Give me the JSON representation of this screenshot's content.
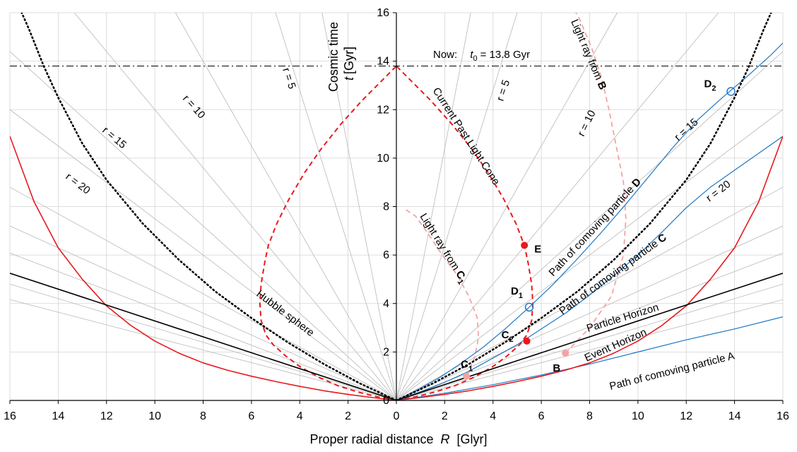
{
  "chart_data": {
    "type": "line",
    "xlabel": "Proper radial distance",
    "xlabel_symbol": "R",
    "xlabel_unit": "[Glyr]",
    "ylabel_line1": "Cosmic time",
    "ylabel_symbol": "t",
    "ylabel_unit": "[Gyr]",
    "xlim": [
      -16,
      16
    ],
    "ylim": [
      0,
      16
    ],
    "x_tick_labels": [
      "16",
      "14",
      "12",
      "10",
      "8",
      "6",
      "4",
      "2",
      "0",
      "2",
      "4",
      "6",
      "8",
      "10",
      "12",
      "14",
      "16"
    ],
    "y_tick_labels": [
      "0",
      "2",
      "4",
      "6",
      "8",
      "10",
      "12",
      "14",
      "16"
    ],
    "grid": true,
    "now": {
      "prefix": "Now:",
      "symbol": "t",
      "sub": "0",
      "suffix": "= 13.8 Gyr",
      "t": 13.8
    },
    "colors": {
      "light_cone": "#e8191d",
      "light_ray": "#f4a3a3",
      "comoving": "#1f77c4",
      "event_horizon": "#e8191d",
      "particle_horizon": "#000000",
      "hubble": "#000000",
      "grid": "#d3d3d3",
      "worldline": "#b8b8b8"
    },
    "labels": {
      "r5": "r = 5",
      "r10": "r = 10",
      "r15": "r = 15",
      "r20": "r = 20",
      "hubble": "Hubble sphere",
      "light_cone": "Current Past Light Cone",
      "ray_b": "Light ray from",
      "ray_b_bold": "B",
      "ray_c1": "Light ray from",
      "ray_c1_bold": "C",
      "ray_c1_sub": "1",
      "path_d": "Path of comoving particle",
      "path_d_bold": "D",
      "path_c": "Path of comoving particle",
      "path_c_bold": "C",
      "particle_horizon": "Particle Horizon",
      "event_horizon": "Event Horizon",
      "path_a": "Path of comoving particle A"
    },
    "points": [
      {
        "name": "E",
        "sub": "",
        "x": 5.3,
        "y": 6.4,
        "style": "red"
      },
      {
        "name": "C",
        "sub": "2",
        "x": 5.4,
        "y": 2.45,
        "style": "red"
      },
      {
        "name": "C",
        "sub": "1",
        "x": 2.9,
        "y": 1.0,
        "style": "pink"
      },
      {
        "name": "B",
        "sub": "",
        "x": 7.0,
        "y": 1.95,
        "style": "pink"
      },
      {
        "name": "D",
        "sub": "1",
        "x": 5.5,
        "y": 3.85,
        "style": "ring"
      },
      {
        "name": "D",
        "sub": "2",
        "x": 13.85,
        "y": 12.75,
        "style": "ring"
      }
    ],
    "series": [
      {
        "name": "Current Past Light Cone",
        "points": [
          [
            0,
            0
          ],
          [
            0.8,
            0.15
          ],
          [
            1.6,
            0.35
          ],
          [
            2.4,
            0.6
          ],
          [
            3.2,
            0.95
          ],
          [
            4.0,
            1.4
          ],
          [
            4.6,
            1.85
          ],
          [
            5.1,
            2.3
          ],
          [
            5.4,
            2.7
          ],
          [
            5.6,
            3.3
          ],
          [
            5.65,
            4.0
          ],
          [
            5.6,
            4.8
          ],
          [
            5.45,
            5.7
          ],
          [
            5.3,
            6.4
          ],
          [
            4.95,
            7.3
          ],
          [
            4.45,
            8.3
          ],
          [
            3.8,
            9.4
          ],
          [
            3.1,
            10.4
          ],
          [
            2.3,
            11.4
          ],
          [
            1.4,
            12.4
          ],
          [
            0.7,
            13.1
          ],
          [
            0,
            13.8
          ]
        ]
      },
      {
        "name": "Light ray from B",
        "points": [
          [
            7.0,
            1.95
          ],
          [
            8.0,
            3.0
          ],
          [
            8.9,
            4.3
          ],
          [
            9.4,
            6.0
          ],
          [
            9.5,
            7.5
          ],
          [
            9.4,
            9.0
          ],
          [
            9.1,
            10.5
          ],
          [
            8.8,
            12.0
          ],
          [
            8.5,
            13.3
          ],
          [
            8.1,
            14.5
          ],
          [
            7.6,
            15.7
          ],
          [
            7.1,
            16.6
          ]
        ]
      },
      {
        "name": "Light ray from C1",
        "points": [
          [
            2.9,
            1.0
          ],
          [
            3.25,
            1.8
          ],
          [
            3.4,
            2.6
          ],
          [
            3.35,
            3.4
          ],
          [
            3.0,
            4.3
          ],
          [
            2.5,
            5.2
          ],
          [
            1.9,
            6.0
          ],
          [
            1.3,
            6.9
          ],
          [
            0.8,
            7.6
          ],
          [
            0.35,
            7.9
          ]
        ]
      },
      {
        "name": "Path of comoving particle D",
        "points": [
          [
            0,
            0
          ],
          [
            0.9,
            0.45
          ],
          [
            1.8,
            0.95
          ],
          [
            2.7,
            1.55
          ],
          [
            3.6,
            2.2
          ],
          [
            4.5,
            2.95
          ],
          [
            5.5,
            3.85
          ],
          [
            6.5,
            4.8
          ],
          [
            7.5,
            5.85
          ],
          [
            8.5,
            6.95
          ],
          [
            9.5,
            8.1
          ],
          [
            10.5,
            9.3
          ],
          [
            11.5,
            10.5
          ],
          [
            12.5,
            11.6
          ],
          [
            13.5,
            12.5
          ],
          [
            14.5,
            13.35
          ],
          [
            15.5,
            14.25
          ],
          [
            16,
            14.75
          ]
        ]
      },
      {
        "name": "Path of comoving particle C",
        "points": [
          [
            0,
            0
          ],
          [
            1.0,
            0.35
          ],
          [
            2.0,
            0.75
          ],
          [
            3.0,
            1.2
          ],
          [
            4.0,
            1.75
          ],
          [
            5.0,
            2.3
          ],
          [
            6.0,
            2.95
          ],
          [
            7.0,
            3.6
          ],
          [
            8.0,
            4.35
          ],
          [
            9.0,
            5.15
          ],
          [
            10.0,
            6.0
          ],
          [
            11.0,
            6.95
          ],
          [
            12.0,
            7.95
          ],
          [
            13.0,
            8.8
          ],
          [
            14.0,
            9.5
          ],
          [
            15.0,
            10.2
          ],
          [
            16,
            10.9
          ]
        ]
      },
      {
        "name": "Path of comoving particle A",
        "points": [
          [
            0,
            0
          ],
          [
            2.0,
            0.3
          ],
          [
            4.0,
            0.65
          ],
          [
            6.0,
            1.05
          ],
          [
            8.0,
            1.5
          ],
          [
            10.0,
            2.0
          ],
          [
            12.0,
            2.5
          ],
          [
            14.0,
            2.95
          ],
          [
            16,
            3.45
          ]
        ]
      },
      {
        "name": "Event Horizon",
        "points": [
          [
            0,
            0
          ],
          [
            1.0,
            0.12
          ],
          [
            2.0,
            0.25
          ],
          [
            3.0,
            0.4
          ],
          [
            4.0,
            0.58
          ],
          [
            5.0,
            0.78
          ],
          [
            6.0,
            1.0
          ],
          [
            7.0,
            1.25
          ],
          [
            8.0,
            1.55
          ],
          [
            9.0,
            1.95
          ],
          [
            10.0,
            2.45
          ],
          [
            11.0,
            3.1
          ],
          [
            12.0,
            3.9
          ],
          [
            13.0,
            5.0
          ],
          [
            14.0,
            6.3
          ],
          [
            15.0,
            8.2
          ],
          [
            16,
            10.9
          ]
        ]
      },
      {
        "name": "Particle Horizon",
        "points": [
          [
            0,
            0
          ],
          [
            16,
            5.25
          ]
        ]
      },
      {
        "name": "Hubble sphere",
        "points": [
          [
            0,
            0
          ],
          [
            1.5,
            0.7
          ],
          [
            3.0,
            1.5
          ],
          [
            4.5,
            2.4
          ],
          [
            6.0,
            3.4
          ],
          [
            7.5,
            4.5
          ],
          [
            9.0,
            5.8
          ],
          [
            10.5,
            7.3
          ],
          [
            12.0,
            9.1
          ],
          [
            13.0,
            10.6
          ],
          [
            14.0,
            12.5
          ],
          [
            14.6,
            13.8
          ],
          [
            15.2,
            15.3
          ],
          [
            15.6,
            16.2
          ]
        ]
      }
    ],
    "worldline_slopes": [
      5.2,
      3.2,
      1.75,
      1.2,
      0.9,
      0.75,
      0.55,
      0.45,
      0.38,
      0.3,
      0.26
    ]
  }
}
